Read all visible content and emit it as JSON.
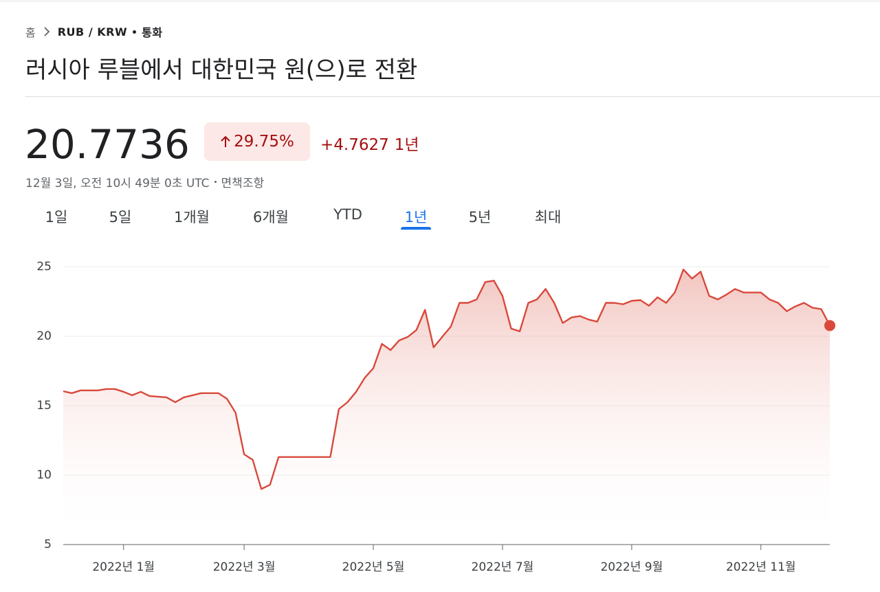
{
  "breadcrumb": {
    "home": "홈",
    "pair": "RUB / KRW",
    "category": "통화"
  },
  "title": "러시아 루블에서 대한민국 원(으)로 전환",
  "price": "20.7736",
  "change_percent": "29.75%",
  "change_value": "+4.7627",
  "change_period": "1년",
  "timestamp": "12월 3일, 오전 10시 49분 0초 UTC",
  "disclaimer": "면책조항",
  "tabs": [
    "1일",
    "5일",
    "1개월",
    "6개월",
    "YTD",
    "1년",
    "5년",
    "최대"
  ],
  "selected_tab": 5,
  "chart_data": {
    "type": "line",
    "color": "#d9483b",
    "grid": true,
    "categories": [
      null,
      null,
      null,
      null,
      null,
      null,
      null,
      "2022년 1월",
      null,
      null,
      null,
      null,
      null,
      null,
      null,
      null,
      null,
      null,
      null,
      null,
      null,
      "2022년 3월",
      null,
      null,
      null,
      null,
      null,
      null,
      null,
      null,
      null,
      null,
      null,
      null,
      null,
      null,
      "2022년 5월",
      null,
      null,
      null,
      null,
      null,
      null,
      null,
      null,
      null,
      null,
      null,
      null,
      null,
      null,
      "2022년 7월",
      null,
      null,
      null,
      null,
      null,
      null,
      null,
      null,
      null,
      null,
      null,
      null,
      null,
      null,
      "2022년 9월",
      null,
      null,
      null,
      null,
      null,
      null,
      null,
      null,
      null,
      null,
      null,
      null,
      null,
      null,
      "2022년 11월",
      null,
      null,
      null,
      null,
      null,
      null,
      null,
      null
    ],
    "values": [
      16.04,
      15.9,
      16.1,
      16.1,
      16.1,
      16.2,
      16.2,
      16.0,
      15.75,
      16.0,
      15.7,
      15.65,
      15.6,
      15.25,
      15.6,
      15.75,
      15.9,
      15.9,
      15.9,
      15.5,
      14.5,
      11.5,
      11.1,
      9.0,
      9.3,
      11.3,
      11.3,
      11.3,
      11.3,
      11.3,
      11.3,
      11.3,
      14.75,
      15.25,
      16.0,
      17.0,
      17.7,
      19.45,
      19.0,
      19.7,
      19.95,
      20.45,
      21.9,
      19.2,
      19.95,
      20.7,
      22.4,
      22.4,
      22.65,
      23.9,
      24.0,
      22.9,
      20.55,
      20.35,
      22.4,
      22.65,
      23.4,
      22.4,
      20.95,
      21.35,
      21.45,
      21.2,
      21.05,
      22.4,
      22.4,
      22.3,
      22.55,
      22.6,
      22.2,
      22.8,
      22.4,
      23.15,
      24.8,
      24.15,
      24.65,
      22.9,
      22.65,
      23.0,
      23.4,
      23.15,
      23.15,
      23.15,
      22.65,
      22.4,
      21.8,
      22.15,
      22.4,
      22.05,
      21.95,
      20.77
    ],
    "ylim": [
      5,
      25
    ],
    "yticks": [
      5,
      10,
      15,
      20,
      25
    ]
  }
}
